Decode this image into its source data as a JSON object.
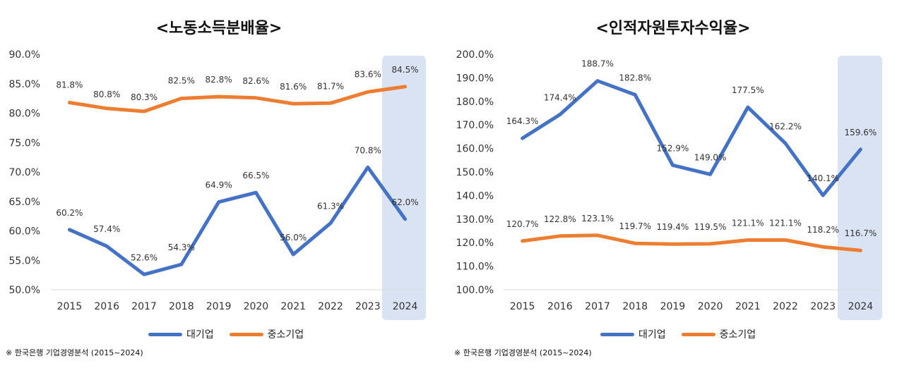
{
  "colors": {
    "large": "#4472C4",
    "sme": "#ED7D31",
    "highlight": "#DAE3F3",
    "axis": "#D9D9D9"
  },
  "chart_data": [
    {
      "type": "line",
      "title": "<노동소득분배율>",
      "categories": [
        "2015",
        "2016",
        "2017",
        "2018",
        "2019",
        "2020",
        "2021",
        "2022",
        "2023",
        "2024"
      ],
      "ylim": [
        50,
        90
      ],
      "yticks": [
        "90.0%",
        "85.0%",
        "80.0%",
        "75.0%",
        "70.0%",
        "65.0%",
        "60.0%",
        "55.0%",
        "50.0%"
      ],
      "ytick_values": [
        90,
        85,
        80,
        75,
        70,
        65,
        60,
        55,
        50
      ],
      "highlight_category": "2024",
      "series": [
        {
          "name": "대기업",
          "values": [
            60.2,
            57.4,
            52.6,
            54.3,
            64.9,
            66.5,
            56.0,
            61.3,
            70.8,
            62.0
          ],
          "labels": [
            "60.2%",
            "57.4%",
            "52.6%",
            "54.3%",
            "64.9%",
            "66.5%",
            "56.0%",
            "61.3%",
            "70.8%",
            "62.0%"
          ]
        },
        {
          "name": "중소기업",
          "values": [
            81.8,
            80.8,
            80.3,
            82.5,
            82.8,
            82.6,
            81.6,
            81.7,
            83.6,
            84.5
          ],
          "labels": [
            "81.8%",
            "80.8%",
            "80.3%",
            "82.5%",
            "82.8%",
            "82.6%",
            "81.6%",
            "81.7%",
            "83.6%",
            "84.5%"
          ]
        }
      ],
      "source": "※ 한국은행 기업경영분석 (2015~2024)"
    },
    {
      "type": "line",
      "title": "<인적자원투자수익율>",
      "categories": [
        "2015",
        "2016",
        "2017",
        "2018",
        "2019",
        "2020",
        "2021",
        "2022",
        "2023",
        "2024"
      ],
      "ylim": [
        100,
        200
      ],
      "yticks": [
        "200.0%",
        "190.0%",
        "180.0%",
        "170.0%",
        "160.0%",
        "150.0%",
        "140.0%",
        "130.0%",
        "120.0%",
        "110.0%",
        "100.0%"
      ],
      "ytick_values": [
        200,
        190,
        180,
        170,
        160,
        150,
        140,
        130,
        120,
        110,
        100
      ],
      "highlight_category": "2024",
      "series": [
        {
          "name": "대기업",
          "values": [
            164.3,
            174.4,
            188.7,
            182.8,
            152.9,
            149.0,
            177.5,
            162.2,
            140.1,
            159.6
          ],
          "labels": [
            "164.3%",
            "174.4%",
            "188.7%",
            "182.8%",
            "152.9%",
            "149.0%",
            "177.5%",
            "162.2%",
            "140.1%",
            "159.6%"
          ]
        },
        {
          "name": "중소기업",
          "values": [
            120.7,
            122.8,
            123.1,
            119.7,
            119.4,
            119.5,
            121.1,
            121.1,
            118.2,
            116.7
          ],
          "labels": [
            "120.7%",
            "122.8%",
            "123.1%",
            "119.7%",
            "119.4%",
            "119.5%",
            "121.1%",
            "121.1%",
            "118.2%",
            "116.7%"
          ]
        }
      ],
      "source": "※ 한국은행 기업경영분석 (2015~2024)"
    }
  ]
}
